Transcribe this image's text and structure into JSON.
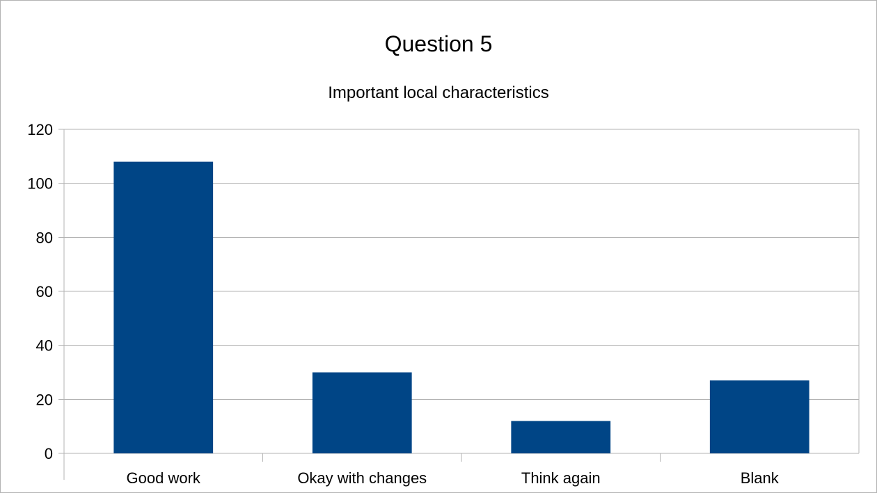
{
  "chart_data": {
    "type": "bar",
    "title": "Question 5",
    "subtitle": "Important local characteristics",
    "categories": [
      "Good work",
      "Okay with changes",
      "Think again",
      "Blank"
    ],
    "values": [
      108,
      30,
      12,
      27
    ],
    "ylim": [
      0,
      120
    ],
    "yticks": [
      "0",
      "20",
      "40",
      "60",
      "80",
      "100",
      "120"
    ],
    "xlabel": "",
    "ylabel": "",
    "grid": true,
    "legend": "none",
    "bar_color": "#004586",
    "grid_color": "#b3b3b3"
  }
}
